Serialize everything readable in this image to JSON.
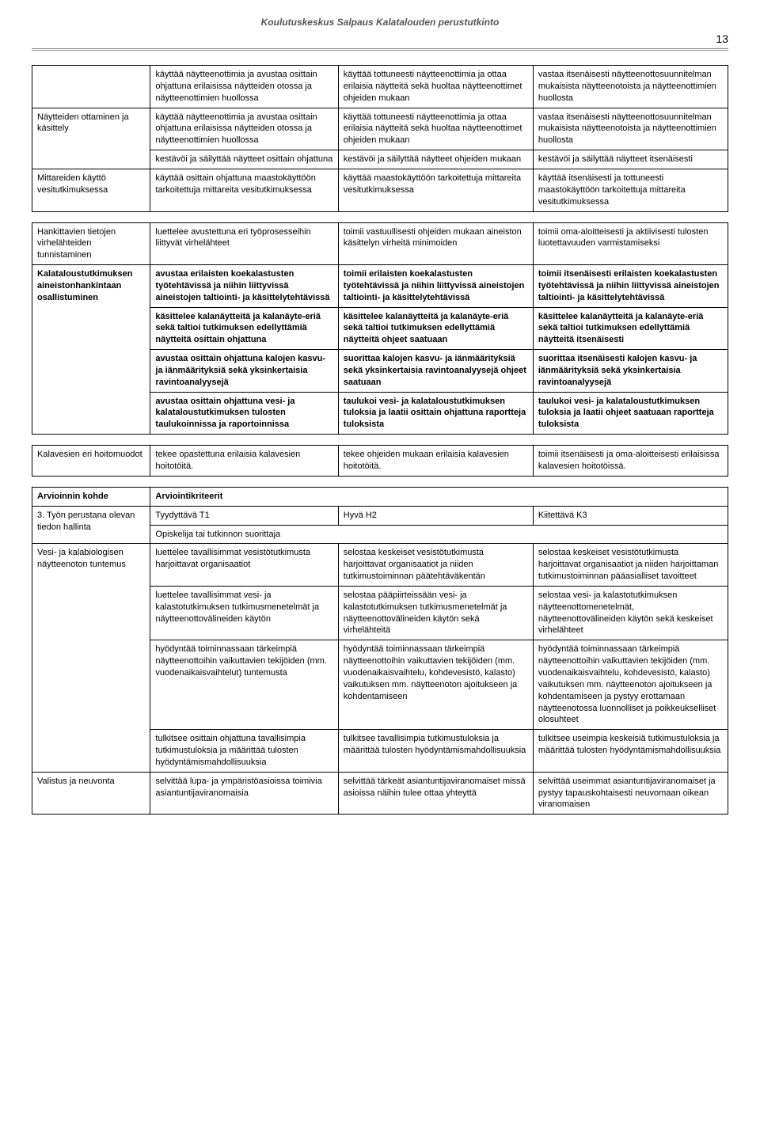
{
  "header": {
    "title": "Koulutuskeskus Salpaus Kalatalouden perustutkinto",
    "page_number": "13"
  },
  "table": {
    "columns": 4,
    "col_widths_pct": [
      17,
      27,
      28,
      28
    ],
    "font_size_pt": 11,
    "cell_border_color": "#000000",
    "background_color": "#ffffff",
    "rows": [
      {
        "type": "data",
        "cells": [
          {
            "text": "",
            "bold": false,
            "rowspan": 1
          },
          {
            "text": "käyttää näytteenottimia ja avustaa osittain ohjattuna erilaisissa näytteiden otossa ja näytteenottimien huollossa",
            "bold": false
          },
          {
            "text": "käyttää tottuneesti näytteenottimia ja ottaa erilaisia näytteitä sekä huoltaa näytteenottimet ohjeiden mukaan",
            "bold": false
          },
          {
            "text": "vastaa itsenäisesti näytteenottosuunnitelman mukaisista näytteenotoista ja näytteenottimien huollosta",
            "bold": false
          }
        ]
      },
      {
        "type": "data",
        "cells": [
          {
            "text": "Näytteiden ottaminen ja käsittely",
            "bold": false,
            "rowspan": 2
          },
          {
            "text": "käyttää näytteenottimia ja avustaa osittain ohjattuna erilaisissa näytteiden otossa ja näytteenottimien huollossa",
            "bold": false
          },
          {
            "text": "käyttää tottuneesti näytteenottimia ja ottaa erilaisia näytteitä sekä huoltaa näytteenottimet ohjeiden mukaan",
            "bold": false
          },
          {
            "text": "vastaa itsenäisesti näytteenottosuunnitelman mukaisista näytteenotoista ja näytteenottimien huollosta",
            "bold": false
          }
        ]
      },
      {
        "type": "data",
        "cells": [
          {
            "text": "kestävöi ja säilyttää näytteet osittain ohjattuna",
            "bold": false
          },
          {
            "text": "kestävöi ja säilyttää näytteet ohjeiden mukaan",
            "bold": false
          },
          {
            "text": "kestävöi ja säilyttää näytteet itsenäisesti",
            "bold": false
          }
        ]
      },
      {
        "type": "data",
        "cells": [
          {
            "text": "Mittareiden käyttö vesitutkimuksessa",
            "bold": false
          },
          {
            "text": "käyttää osittain ohjattuna maastokäyttöön tarkoitettuja mittareita vesitutkimuksessa",
            "bold": false
          },
          {
            "text": "käyttää maastokäyttöön tarkoitettuja mittareita vesitutkimuksessa",
            "bold": false
          },
          {
            "text": "käyttää itsenäisesti ja tottuneesti maastokäyttöön tarkoitettuja mittareita vesitutkimuksessa",
            "bold": false
          }
        ]
      },
      {
        "type": "gap"
      },
      {
        "type": "data",
        "cells": [
          {
            "text": "Hankittavien tietojen virhelähteiden tunnistaminen",
            "bold": false
          },
          {
            "text": "luettelee avustettuna eri työprosesseihin liittyvät virhelähteet",
            "bold": false
          },
          {
            "text": "toimii vastuullisesti ohjeiden mukaan aineiston käsittelyn virheitä minimoiden",
            "bold": false
          },
          {
            "text": "toimii oma-aloitteisesti ja aktiivisesti tulosten luotettavuuden varmistamiseksi",
            "bold": false
          }
        ]
      },
      {
        "type": "data",
        "cells": [
          {
            "text": "Kalataloustutkimuksen aineistonhankintaan osallistuminen",
            "bold": true,
            "rowspan": 4
          },
          {
            "text": "avustaa erilaisten koekalastusten työtehtävissä ja niihin liittyvissä aineistojen taltiointi- ja käsittelytehtävissä",
            "bold": true
          },
          {
            "text": "toimii erilaisten koekalastusten työtehtävissä ja niihin liittyvissä aineistojen taltiointi- ja käsittelytehtävissä",
            "bold": true
          },
          {
            "text": "toimii itsenäisesti erilaisten koekalastusten työtehtävissä ja niihin liittyvissä aineistojen taltiointi- ja käsittelytehtävissä",
            "bold": true
          }
        ]
      },
      {
        "type": "data",
        "cells": [
          {
            "text": "käsittelee kalanäytteitä ja kalanäyte-eriä sekä taltioi tutkimuksen edellyttämiä näytteitä osittain ohjattuna",
            "bold": true
          },
          {
            "text": "käsittelee kalanäytteitä ja kalanäyte-eriä sekä taltioi tutkimuksen edellyttämiä näytteitä ohjeet saatuaan",
            "bold": true
          },
          {
            "text": "käsittelee kalanäytteitä ja kalanäyte-eriä sekä taltioi tutkimuksen edellyttämiä näytteitä itsenäisesti",
            "bold": true
          }
        ]
      },
      {
        "type": "data",
        "cells": [
          {
            "text": "avustaa osittain ohjattuna kalojen kasvu- ja iänmäärityksiä sekä yksinkertaisia ravintoanalyysejä",
            "bold": true
          },
          {
            "text": "suorittaa kalojen kasvu- ja iänmäärityksiä sekä yksinkertaisia ravintoanalyysejä ohjeet saatuaan",
            "bold": true
          },
          {
            "text": "suorittaa itsenäisesti kalojen kasvu- ja iänmäärityksiä sekä yksinkertaisia ravintoanalyysejä",
            "bold": true
          }
        ]
      },
      {
        "type": "data",
        "cells": [
          {
            "text": "avustaa osittain ohjattuna vesi- ja kalataloustutkimuksen tulosten taulukoinnissa ja raportoinnissa",
            "bold": true
          },
          {
            "text": "taulukoi vesi- ja kalataloustutkimuksen tuloksia ja laatii osittain ohjattuna raportteja tuloksista",
            "bold": true
          },
          {
            "text": "taulukoi vesi- ja kalataloustutkimuksen tuloksia ja laatii ohjeet saatuaan raportteja tuloksista",
            "bold": true
          }
        ]
      },
      {
        "type": "gap"
      },
      {
        "type": "data",
        "cells": [
          {
            "text": "Kalavesien eri hoitomuodot",
            "bold": false
          },
          {
            "text": "tekee opastettuna erilaisia kalavesien hoitotöitä.",
            "bold": false
          },
          {
            "text": "tekee ohjeiden mukaan erilaisia kalavesien hoitotöitä.",
            "bold": false
          },
          {
            "text": "toimii itsenäisesti ja oma-aloitteisesti erilaisissa kalavesien hoitotöissä.",
            "bold": false
          }
        ]
      },
      {
        "type": "gap"
      },
      {
        "type": "data",
        "cells": [
          {
            "text": "Arvioinnin kohde",
            "bold": true
          },
          {
            "text": "Arviointikriteerit",
            "bold": true,
            "colspan": 3
          }
        ]
      },
      {
        "type": "data",
        "cells": [
          {
            "text": "3. Työn perustana olevan tiedon hallinta",
            "bold": false,
            "rowspan": 2
          },
          {
            "text": "Tyydyttävä T1",
            "bold": false
          },
          {
            "text": "Hyvä H2",
            "bold": false
          },
          {
            "text": "Kiitettävä K3",
            "bold": false
          }
        ]
      },
      {
        "type": "data",
        "cells": [
          {
            "text": "Opiskelija tai tutkinnon suorittaja",
            "bold": false,
            "colspan": 3
          }
        ]
      },
      {
        "type": "data",
        "cells": [
          {
            "text": "Vesi- ja kalabiologisen näytteenoton tuntemus",
            "bold": false,
            "rowspan": 4
          },
          {
            "text": "luettelee tavallisimmat vesistötutkimusta harjoittavat organisaatiot",
            "bold": false
          },
          {
            "text": "selostaa keskeiset vesistötutkimusta harjoittavat organisaatiot ja niiden tutkimustoiminnan päätehtäväkentän",
            "bold": false
          },
          {
            "text": "selostaa keskeiset vesistötutkimusta harjoittavat organisaatiot ja niiden harjoittaman tutkimustoiminnan pääasialliset tavoitteet",
            "bold": false
          }
        ]
      },
      {
        "type": "data",
        "cells": [
          {
            "text": "luettelee tavallisimmat vesi- ja kalastotutkimuksen tutkimusmenetelmät ja näytteenottovälineiden käytön",
            "bold": false
          },
          {
            "text": "selostaa pääpiirteissään vesi- ja kalastotutkimuksen tutkimusmenetelmät ja näytteenottovälineiden käytön sekä virhelähteitä",
            "bold": false
          },
          {
            "text": "selostaa vesi- ja kalastotutkimuksen näytteenottomenetelmät, näytteenottovälineiden käytön sekä keskeiset virhelähteet",
            "bold": false
          }
        ]
      },
      {
        "type": "data",
        "cells": [
          {
            "text": "hyödyntää toiminnassaan tärkeimpiä näytteenottoihin vaikuttavien tekijöiden (mm. vuodenaikaisvaihtelut) tuntemusta",
            "bold": false
          },
          {
            "text": "hyödyntää toiminnassaan tärkeimpiä näytteenottoihin vaikuttavien tekijöiden (mm. vuodenaikaisvaihtelu, kohdevesistö, kalasto) vaikutuksen mm. näytteenoton ajoitukseen ja kohdentamiseen",
            "bold": false
          },
          {
            "text": "hyödyntää toiminnassaan tärkeimpiä näytteenottoihin vaikuttavien tekijöiden (mm. vuodenaikaisvaihtelu, kohdevesistö, kalasto) vaikutuksen mm. näytteenoton ajoitukseen ja kohdentamiseen ja pystyy erottamaan näytteenotossa luonnolliset ja poikkeukselliset olosuhteet",
            "bold": false
          }
        ]
      },
      {
        "type": "data",
        "cells": [
          {
            "text": "tulkitsee osittain ohjattuna tavallisimpia tutkimustuloksia ja määrittää tulosten hyödyntämismahdollisuuksia",
            "bold": false
          },
          {
            "text": "tulkitsee tavallisimpia tutkimustuloksia ja määrittää tulosten hyödyntämismahdollisuuksia",
            "bold": false
          },
          {
            "text": "tulkitsee useimpia keskeisiä tutkimustuloksia ja määrittää tulosten hyödyntämismahdollisuuksia",
            "bold": false
          }
        ]
      },
      {
        "type": "data",
        "cells": [
          {
            "text": "Valistus ja neuvonta",
            "bold": false
          },
          {
            "text": "selvittää lupa- ja ympäristöasioissa toimivia asiantuntijaviranomaisia",
            "bold": false
          },
          {
            "text": "selvittää tärkeät asiantuntijaviranomaiset missä asioissa näihin tulee ottaa yhteyttä",
            "bold": false
          },
          {
            "text": "selvittää useimmat asiantuntijaviranomaiset ja pystyy tapauskohtaisesti neuvomaan oikean viranomaisen",
            "bold": false
          }
        ]
      }
    ]
  }
}
